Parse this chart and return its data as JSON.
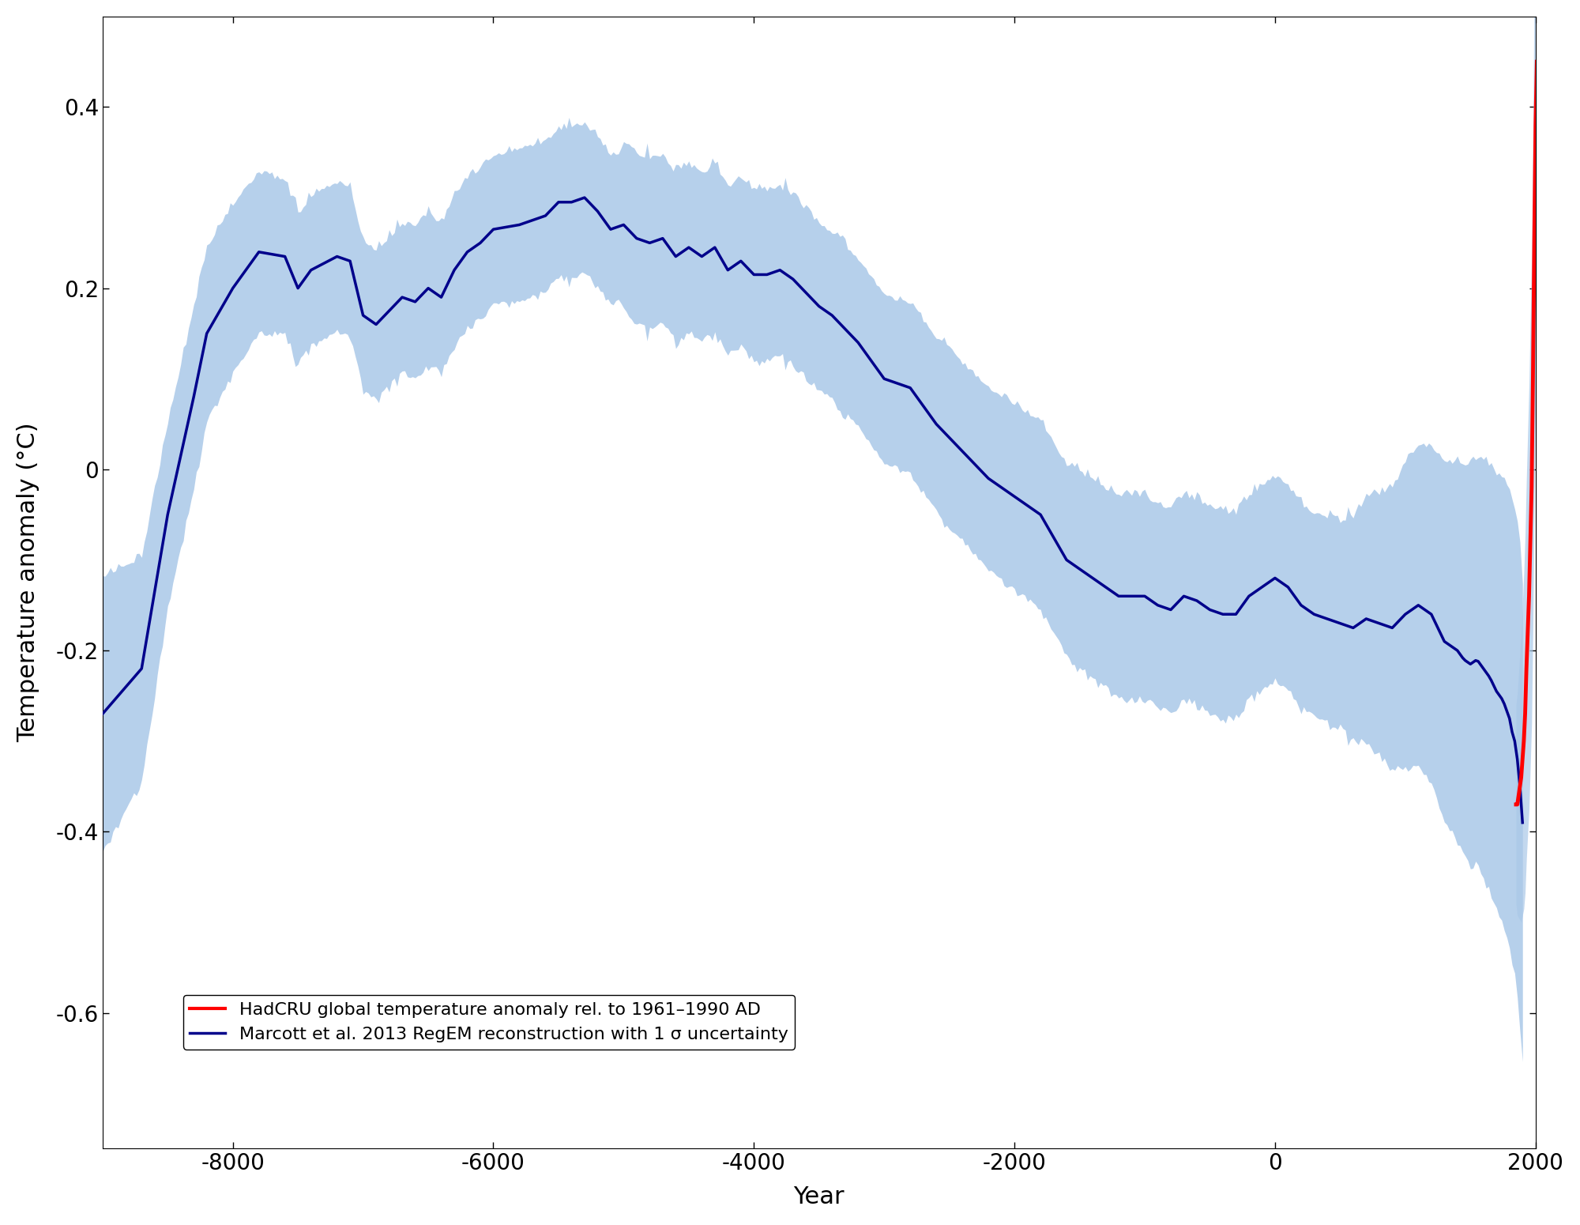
{
  "title": "",
  "xlabel": "Year",
  "ylabel": "Temperature anomaly (°C)",
  "xlim": [
    -9000,
    2000
  ],
  "ylim": [
    -0.75,
    0.5
  ],
  "xticks": [
    -8000,
    -6000,
    -4000,
    -2000,
    0,
    2000
  ],
  "yticks": [
    -0.6,
    -0.4,
    -0.2,
    0.0,
    0.2,
    0.4
  ],
  "bg_color": "#ffffff",
  "shade_color": "#aac8e8",
  "line_color": "#00008b",
  "red_color": "#ff0000",
  "line_width": 2.5,
  "legend_label_red": "HadCRU global temperature anomaly rel. to 1961–1990 AD",
  "legend_label_blue": "Marcott et al. 2013 RegEM reconstruction with 1 σ uncertainty"
}
